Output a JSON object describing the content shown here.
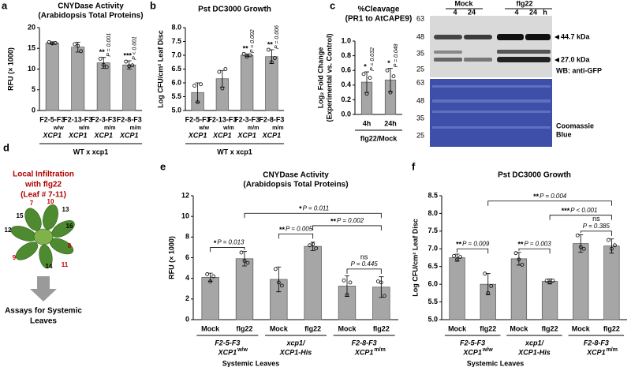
{
  "chart_data": [
    {
      "panel": "a",
      "type": "bar",
      "title": "CNYDase Activity",
      "subtitle": "(Arabidopsis Total Proteins)",
      "ylabel": [
        "RFU (× 1000)"
      ],
      "categories": [
        "F2-5-F3",
        "F2-13-F3",
        "F2-3-F3",
        "F2-8-F3"
      ],
      "genotypes": [
        "XCP1",
        "XCP1",
        "XCP1",
        "XCP1"
      ],
      "alleles": [
        "w/w",
        "w/m",
        "m/m",
        "m/m"
      ],
      "values": [
        16.3,
        15.3,
        11.5,
        11.0
      ],
      "errors": [
        0.3,
        1.2,
        1.3,
        1.0
      ],
      "points": [
        [
          16.5,
          16.2,
          16.3
        ],
        [
          16.0,
          15.6,
          14.3
        ],
        [
          12.5,
          11.0,
          10.5
        ],
        [
          11.8,
          10.7,
          10.9
        ]
      ],
      "stars": [
        null,
        null,
        "**",
        "***"
      ],
      "p_labels": [
        null,
        null,
        "P = 0.001",
        "P < 0.001"
      ],
      "group_label": "WT x xcp1",
      "ylim": [
        0,
        20
      ],
      "yticks": [
        0,
        5,
        10,
        15,
        20
      ],
      "color": "#a6a6a6"
    },
    {
      "panel": "b",
      "type": "bar",
      "title": "Pst DC3000 Growth",
      "ylabel": [
        "Log CFU/cm² Leaf Disc"
      ],
      "categories": [
        "F2-5-F3",
        "F2-13-F3",
        "F2-3-F3",
        "F2-8-F3"
      ],
      "genotypes": [
        "XCP1",
        "XCP1",
        "XCP1",
        "XCP1"
      ],
      "alleles": [
        "w/w",
        "w/m",
        "m/m",
        "m/m"
      ],
      "values": [
        5.65,
        6.15,
        7.0,
        6.95
      ],
      "errors": [
        0.35,
        0.3,
        0.05,
        0.25
      ],
      "points": [
        [
          5.9,
          5.3,
          5.95
        ],
        [
          6.4,
          5.8,
          6.5
        ],
        [
          7.05,
          6.95,
          7.0
        ],
        [
          7.2,
          6.75,
          6.9
        ]
      ],
      "stars": [
        null,
        null,
        "**",
        "**"
      ],
      "p_labels": [
        null,
        null,
        "P = 0.002",
        "P = 0.006"
      ],
      "group_label": "WT x xcp1",
      "ylim": [
        5,
        8
      ],
      "yticks": [
        {
          "value": 5,
          "label": "5.0"
        },
        5.5,
        {
          "value": 6,
          "label": "6.0"
        },
        6.5,
        {
          "value": 7,
          "label": "7.0"
        },
        7.5,
        {
          "value": 8,
          "label": "8.0"
        }
      ],
      "color": "#a6a6a6"
    },
    {
      "panel": "c",
      "type": "bar",
      "title": "%Cleavage",
      "subtitle": "(PR1 to AtCAPE9)",
      "ylabel": [
        "Log₂ Fold Change",
        "(Experimental vs. Control)"
      ],
      "categories": [
        "4h",
        "24h"
      ],
      "values": [
        0.44,
        0.47
      ],
      "errors": [
        0.14,
        0.16
      ],
      "points": [
        [
          0.55,
          0.28,
          0.5
        ],
        [
          0.6,
          0.3,
          0.52
        ]
      ],
      "stars": [
        "*",
        "*"
      ],
      "p_labels": [
        "P = 0.032",
        "P = 0.048"
      ],
      "group_label": "flg22/Mock",
      "ylim": [
        0,
        1
      ],
      "yticks": [
        {
          "value": 0,
          "label": "0.0"
        },
        0.2,
        0.4,
        0.6,
        0.8,
        {
          "value": 1,
          "label": "1.0"
        }
      ],
      "color": "#a6a6a6"
    },
    {
      "panel": "e",
      "type": "bar",
      "title": "CNYDase Activity",
      "subtitle": "(Arabidopsis Total Proteins)",
      "ylabel": [
        "RFU (× 1000)"
      ],
      "categories": [
        "Mock",
        "flg22",
        "Mock",
        "flg22",
        "Mock",
        "flg22"
      ],
      "groups": [
        {
          "name": "F2-5-F3",
          "genotype": "XCP1",
          "allele": "w/w"
        },
        {
          "name": "xcp1/",
          "genotype": "XCP1-His"
        },
        {
          "name": "F2-8-F3",
          "genotype": "XCP1",
          "allele": "m/m"
        }
      ],
      "values": [
        4.1,
        5.9,
        3.9,
        7.1,
        3.25,
        3.15
      ],
      "errors": [
        0.4,
        0.7,
        1.2,
        0.4,
        1.0,
        1.0
      ],
      "points": [
        [
          4.4,
          3.7,
          4.2
        ],
        [
          6.5,
          5.7,
          5.5
        ],
        [
          4.9,
          3.6,
          3.3
        ],
        [
          7.2,
          7.3,
          6.9
        ],
        [
          3.8,
          2.4,
          3.6
        ],
        [
          3.7,
          3.6,
          2.3
        ]
      ],
      "comparisons": [
        {
          "bars": [
            0,
            1
          ],
          "stars": "*",
          "p": "P = 0.013"
        },
        {
          "bars": [
            2,
            3
          ],
          "stars": "**",
          "p": "P = 0.005"
        },
        {
          "bars": [
            4,
            5
          ],
          "stars": "ns",
          "p": "P = 0.445"
        },
        {
          "bars": [
            3,
            5
          ],
          "stars": "**",
          "p": "P = 0.002"
        },
        {
          "bars": [
            1,
            5
          ],
          "stars": "*",
          "p": "P = 0.011"
        }
      ],
      "xlabel": "Systemic Leaves",
      "ylim": [
        0,
        12
      ],
      "yticks": [
        0,
        2,
        4,
        6,
        8,
        10,
        12
      ],
      "color": "#a6a6a6"
    },
    {
      "panel": "f",
      "type": "bar",
      "title": "Pst DC3000 Growth",
      "ylabel": [
        "Log CFU/cm² Leaf Disc"
      ],
      "categories": [
        "Mock",
        "flg22",
        "Mock",
        "flg22",
        "Mock",
        "flg22"
      ],
      "groups": [
        {
          "name": "F2-5-F3",
          "genotype": "XCP1",
          "allele": "w/w"
        },
        {
          "name": "xcp1/",
          "genotype": "XCP1-His"
        },
        {
          "name": "F2-8-F3",
          "genotype": "XCP1",
          "allele": "m/m"
        }
      ],
      "values": [
        6.75,
        6.0,
        6.72,
        6.08,
        7.15,
        7.08
      ],
      "errors": [
        0.1,
        0.3,
        0.18,
        0.07,
        0.25,
        0.2
      ],
      "points": [
        [
          6.8,
          6.7,
          6.77
        ],
        [
          6.3,
          5.75,
          5.95
        ],
        [
          6.88,
          6.7,
          6.55
        ],
        [
          6.1,
          6.05,
          6.1
        ],
        [
          7.38,
          7.05,
          7.0
        ],
        [
          7.25,
          7.0,
          7.1
        ]
      ],
      "comparisons": [
        {
          "bars": [
            0,
            1
          ],
          "stars": "**",
          "p": "P = 0.009"
        },
        {
          "bars": [
            2,
            3
          ],
          "stars": "**",
          "p": "P = 0.003"
        },
        {
          "bars": [
            4,
            5
          ],
          "stars": "ns",
          "p": "P = 0.385"
        },
        {
          "bars": [
            3,
            5
          ],
          "stars": "***",
          "p": "P < 0.001"
        },
        {
          "bars": [
            1,
            5
          ],
          "stars": "**",
          "p": "P = 0.004"
        }
      ],
      "xlabel": "Systemic Leaves",
      "ylim": [
        5,
        8.5
      ],
      "yticks": [
        {
          "value": 5,
          "label": "5.0"
        },
        5.5,
        {
          "value": 6,
          "label": "6.0"
        },
        6.5,
        {
          "value": 7,
          "label": "7.0"
        },
        7.5,
        {
          "value": 8,
          "label": "8.0"
        },
        8.5
      ],
      "color": "#a6a6a6"
    }
  ],
  "blot": {
    "conditions": [
      "Mock",
      "flg22"
    ],
    "times": [
      "4",
      "24",
      "4",
      "24"
    ],
    "unit": "h",
    "markers_top": [
      "63",
      "48",
      "35",
      "25"
    ],
    "bands": [
      "44.7 kDa",
      "27.0 kDa"
    ],
    "wb": "WB: anti-GFP",
    "markers_bottom": [
      "63",
      "48",
      "35",
      "25"
    ],
    "stain": [
      "Coomassie",
      "Blue"
    ]
  },
  "diagram": {
    "panel": "d",
    "title": [
      "Local Infiltration",
      "with flg22",
      "(Leaf # 7-11)"
    ],
    "leaves": [
      {
        "label": "7",
        "infiltrated": true
      },
      {
        "label": "10",
        "infiltrated": true
      },
      {
        "label": "13",
        "infiltrated": false
      },
      {
        "label": "15",
        "infiltrated": false
      },
      {
        "label": "16",
        "infiltrated": false
      },
      {
        "label": "12",
        "infiltrated": false
      },
      {
        "label": "8",
        "infiltrated": true
      },
      {
        "label": "9",
        "infiltrated": true
      },
      {
        "label": "14",
        "infiltrated": false
      },
      {
        "label": "11",
        "infiltrated": true
      }
    ],
    "caption": [
      "Assays for Systemic",
      "Leaves"
    ]
  }
}
